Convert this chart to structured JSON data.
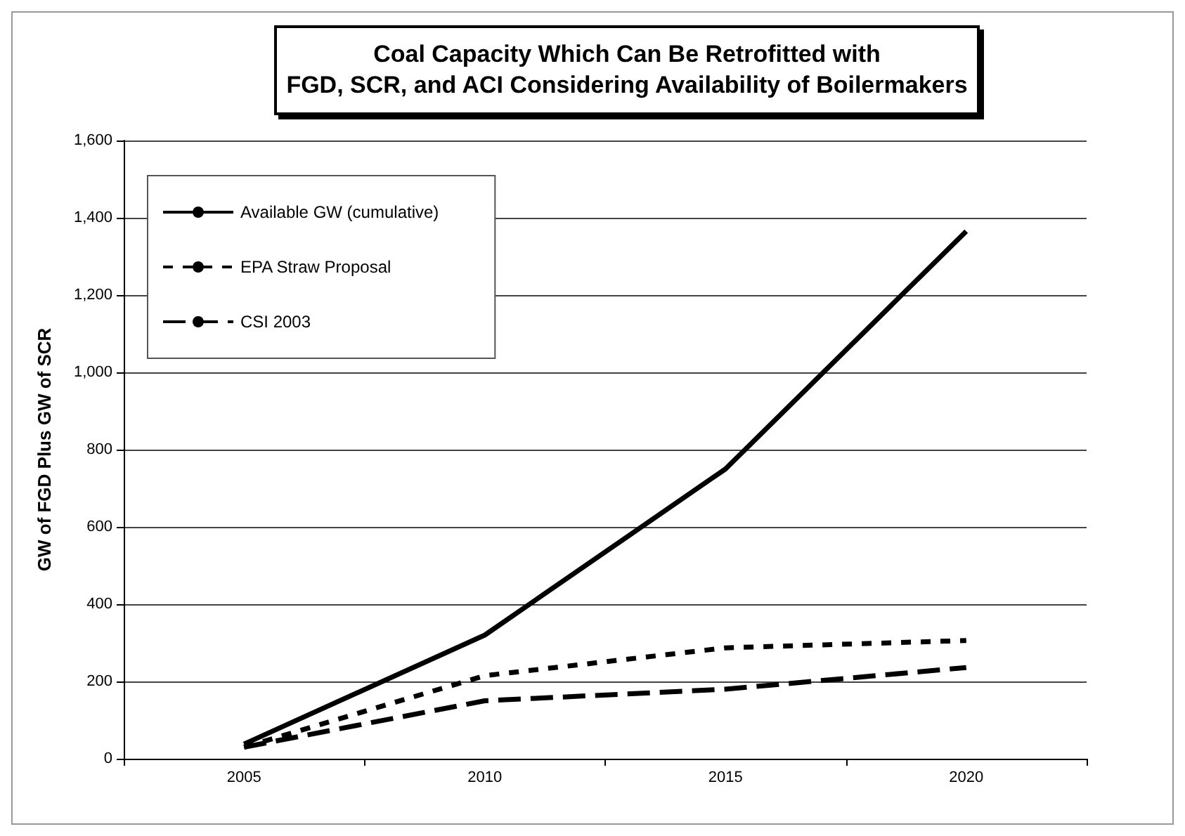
{
  "chart_data": {
    "type": "line",
    "title": "Coal Capacity Which Can Be Retrofitted with\nFGD, SCR, and ACI Considering Availability of Boilermakers",
    "ylabel": "GW of FGD Plus GW of SCR",
    "categories": [
      "2005",
      "2010",
      "2015",
      "2020"
    ],
    "series": [
      {
        "name": "Available GW (cumulative)",
        "color": "#000000",
        "line_style": "solid",
        "values": [
          38,
          320,
          750,
          1365
        ]
      },
      {
        "name": "EPA Straw Proposal",
        "color": "#000000",
        "line_style": "dotted",
        "values": [
          30,
          215,
          287,
          306
        ]
      },
      {
        "name": "CSI 2003",
        "color": "#000000",
        "line_style": "dashed",
        "values": [
          30,
          150,
          180,
          236
        ]
      }
    ],
    "ylim": [
      0,
      1600
    ],
    "yticks": [
      {
        "value": 0,
        "label": "0"
      },
      {
        "value": 200,
        "label": "200"
      },
      {
        "value": 400,
        "label": "400"
      },
      {
        "value": 600,
        "label": "600"
      },
      {
        "value": 800,
        "label": "800"
      },
      {
        "value": 1000,
        "label": "1,000"
      },
      {
        "value": 1200,
        "label": "1,200"
      },
      {
        "value": 1400,
        "label": "1,400"
      },
      {
        "value": 1600,
        "label": "1,600"
      }
    ],
    "grid": "y",
    "legend": "top left",
    "marker": "none"
  }
}
